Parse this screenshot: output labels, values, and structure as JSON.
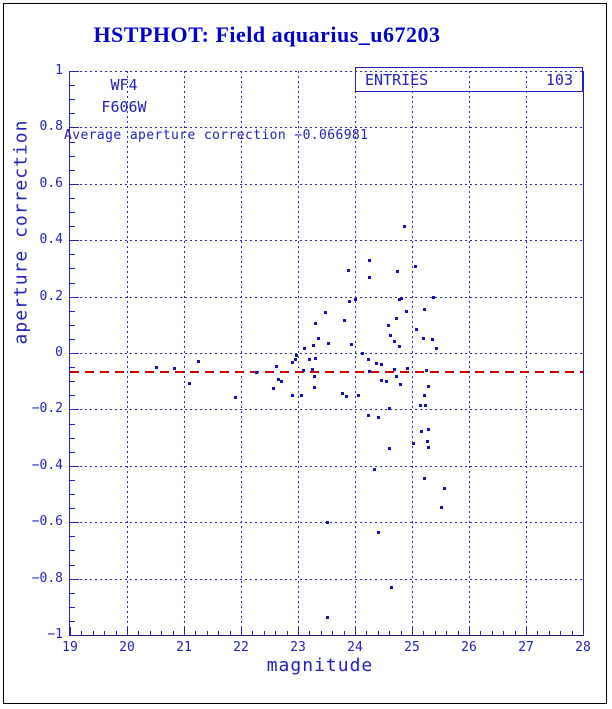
{
  "page": {
    "title": "HSTPHOT: Field aquarius_u67203"
  },
  "labels": {
    "camera": "WF4",
    "filter": "F606W",
    "average_text": "Average aperture correction −0.066981",
    "entries_label": "ENTRIES",
    "entries_value": "103"
  },
  "colors": {
    "plot_blue": "#2222bb",
    "title_blue": "#0000cc",
    "point_blue": "#1313b8",
    "reference_red": "#cc0000",
    "frame_black": "#000000"
  },
  "chart_data": {
    "type": "scatter",
    "title": "HSTPHOT: Field aquarius_u67203",
    "xlabel": "magnitude",
    "ylabel": "aperture correction",
    "xlim": [
      19,
      28
    ],
    "ylim": [
      -1,
      1
    ],
    "x_tick_values": [
      19,
      20,
      21,
      22,
      23,
      24,
      25,
      26,
      27,
      28
    ],
    "x_tick_labels": [
      "19",
      "20",
      "21",
      "22",
      "23",
      "24",
      "25",
      "26",
      "27",
      "28"
    ],
    "y_tick_values": [
      1,
      0.8,
      0.6,
      0.4,
      0.2,
      0,
      -0.2,
      -0.4,
      -0.6,
      -0.8,
      -1
    ],
    "y_tick_labels": [
      "1",
      "0.8",
      "0.6",
      "0.4",
      "0.2",
      "0",
      "−0.2",
      "−0.4",
      "−0.6",
      "−0.8",
      "−1"
    ],
    "x_minor_step": 0.2,
    "y_minor_step": 0.05,
    "grid_x_values": [
      20,
      21,
      22,
      23,
      24,
      25,
      26,
      27
    ],
    "grid_y_values": [
      1,
      0.8,
      0.6,
      0.4,
      0.2,
      0,
      -0.2,
      -0.4,
      -0.6,
      -0.8
    ],
    "grid_style": "dotted",
    "legend_position": "none",
    "entries": 103,
    "average_aperture_correction": -0.066981,
    "reference_line": {
      "y": -0.066981,
      "style": "dashed",
      "color": "#cc0000"
    },
    "points": [
      [
        20.51,
        -0.05
      ],
      [
        20.82,
        -0.053
      ],
      [
        21.09,
        -0.107
      ],
      [
        21.25,
        -0.028
      ],
      [
        21.9,
        -0.157
      ],
      [
        22.26,
        -0.068
      ],
      [
        22.56,
        -0.125
      ],
      [
        22.61,
        -0.046
      ],
      [
        22.65,
        -0.093
      ],
      [
        22.7,
        -0.1
      ],
      [
        22.9,
        -0.032
      ],
      [
        22.9,
        -0.15
      ],
      [
        22.95,
        -0.021
      ],
      [
        22.96,
        -0.007
      ],
      [
        23.05,
        -0.15
      ],
      [
        23.08,
        -0.06
      ],
      [
        23.1,
        0.018
      ],
      [
        23.19,
        -0.021
      ],
      [
        23.25,
        -0.057
      ],
      [
        23.26,
        0.028
      ],
      [
        23.28,
        -0.082
      ],
      [
        23.28,
        -0.121
      ],
      [
        23.3,
        -0.018
      ],
      [
        23.3,
        0.107
      ],
      [
        23.35,
        0.053
      ],
      [
        23.47,
        0.146
      ],
      [
        23.5,
        -0.6
      ],
      [
        23.51,
        -0.935
      ],
      [
        23.52,
        0.036
      ],
      [
        23.78,
        -0.142
      ],
      [
        23.81,
        0.117
      ],
      [
        23.84,
        -0.153
      ],
      [
        23.88,
        0.295
      ],
      [
        23.9,
        0.185
      ],
      [
        23.93,
        0.032
      ],
      [
        24.0,
        0.19
      ],
      [
        24.05,
        -0.15
      ],
      [
        24.12,
        0.0
      ],
      [
        24.22,
        -0.22
      ],
      [
        24.23,
        -0.021
      ],
      [
        24.24,
        0.27
      ],
      [
        24.25,
        0.33
      ],
      [
        24.25,
        -0.064
      ],
      [
        24.33,
        -0.41
      ],
      [
        24.37,
        -0.036
      ],
      [
        24.4,
        -0.228
      ],
      [
        24.4,
        -0.633
      ],
      [
        24.46,
        -0.04
      ],
      [
        24.46,
        -0.096
      ],
      [
        24.54,
        -0.1
      ],
      [
        24.58,
        0.1
      ],
      [
        24.6,
        -0.196
      ],
      [
        24.6,
        -0.338
      ],
      [
        24.61,
        0.064
      ],
      [
        24.63,
        -0.83
      ],
      [
        24.68,
        0.043
      ],
      [
        24.68,
        -0.057
      ],
      [
        24.72,
        0.125
      ],
      [
        24.72,
        -0.082
      ],
      [
        24.73,
        0.29
      ],
      [
        24.77,
        0.025
      ],
      [
        24.77,
        0.19
      ],
      [
        24.79,
        -0.11
      ],
      [
        24.8,
        0.195
      ],
      [
        24.86,
        0.45
      ],
      [
        24.9,
        0.15
      ],
      [
        24.91,
        -0.053
      ],
      [
        25.01,
        -0.32
      ],
      [
        25.05,
        0.31
      ],
      [
        25.07,
        0.085
      ],
      [
        25.14,
        -0.185
      ],
      [
        25.16,
        -0.277
      ],
      [
        25.19,
        0.053
      ],
      [
        25.21,
        0.157
      ],
      [
        25.21,
        -0.445
      ],
      [
        25.21,
        -0.15
      ],
      [
        25.23,
        -0.185
      ],
      [
        25.25,
        -0.06
      ],
      [
        25.26,
        -0.313
      ],
      [
        25.28,
        -0.27
      ],
      [
        25.28,
        -0.117
      ],
      [
        25.28,
        -0.334
      ],
      [
        25.35,
        0.05
      ],
      [
        25.37,
        0.2
      ],
      [
        25.42,
        0.018
      ],
      [
        25.51,
        -0.545
      ],
      [
        25.56,
        -0.48
      ]
    ]
  }
}
